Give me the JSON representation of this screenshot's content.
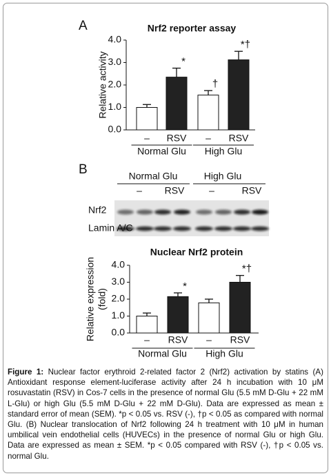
{
  "panel_labels": [
    "A",
    "B"
  ],
  "chart_data": [
    {
      "type": "bar",
      "title": "Nrf2 reporter assay",
      "ylabel": "Relative activity",
      "categories": [
        "–",
        "RSV",
        "–",
        "RSV"
      ],
      "groups": [
        "Normal Glu",
        "High Glu"
      ],
      "values": [
        1.0,
        2.35,
        1.55,
        3.12
      ],
      "errors": [
        0.13,
        0.4,
        0.2,
        0.38
      ],
      "value_annotations": [
        null,
        "*",
        "†",
        "*†"
      ],
      "colors": [
        "#ffffff",
        "#222222",
        "#ffffff",
        "#222222"
      ],
      "ylim": [
        0,
        4
      ],
      "yticks": [
        {
          "value": 0,
          "label": "0.0"
        },
        {
          "value": 1,
          "label": "1.0"
        },
        {
          "value": 2,
          "label": "2.0"
        },
        {
          "value": 3,
          "label": "3.0"
        },
        {
          "value": 4,
          "label": "4.0"
        }
      ]
    },
    {
      "type": "bar",
      "title": "Nuclear Nrf2 protein",
      "ylabel": [
        "Relative expression",
        "(fold)"
      ],
      "categories": [
        "–",
        "RSV",
        "–",
        "RSV"
      ],
      "groups": [
        "Normal Glu",
        "High Glu"
      ],
      "values": [
        1.0,
        2.15,
        1.78,
        3.0
      ],
      "errors": [
        0.18,
        0.22,
        0.22,
        0.4
      ],
      "value_annotations": [
        null,
        "*",
        null,
        "*†"
      ],
      "colors": [
        "#ffffff",
        "#222222",
        "#ffffff",
        "#222222"
      ],
      "ylim": [
        0,
        4
      ],
      "yticks": [
        {
          "value": 0,
          "label": "0.0"
        },
        {
          "value": 1,
          "label": "1.0"
        },
        {
          "value": 2,
          "label": "2.0"
        },
        {
          "value": 3,
          "label": "3.0"
        },
        {
          "value": 4,
          "label": "4.0"
        }
      ]
    }
  ],
  "blot": {
    "groups": [
      "Normal Glu",
      "High Glu"
    ],
    "lanes": [
      "–",
      "RSV",
      "–",
      "RSV"
    ],
    "rows": [
      "Nrf2",
      "Lamin A/C"
    ]
  },
  "caption": {
    "label": "Figure 1:",
    "text": "Nuclear factor erythroid 2-related factor 2 (Nrf2) activation by statins (A) Antioxidant response element-luciferase activity after 24 h incubation with 10 μM rosuvastatin (RSV) in Cos-7 cells in the presence of normal Glu (5.5 mM D-Glu + 22 mM L-Glu) or high Glu (5.5 mM D-Glu + 22 mM D-Glu). Data are expressed as mean ± standard error of mean (SEM). *p < 0.05 vs. RSV (-), †p < 0.05 as compared with normal Glu. (B) Nuclear translocation of Nrf2 following 24 h treatment with 10 μM in human umbilical vein endothelial cells (HUVECs) in the presence of normal Glu or high Glu. Data are expressed as mean ± SEM. *p < 0.05 compared with RSV (-), †p < 0.05 vs. normal Glu."
  }
}
